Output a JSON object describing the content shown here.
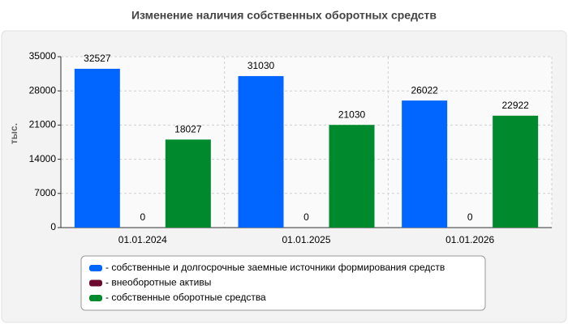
{
  "chart_data": {
    "type": "bar",
    "title": "Изменение наличия собственных оборотных средств",
    "y_label": "тыс.",
    "categories": [
      "01.01.2024",
      "01.01.2025",
      "01.01.2026"
    ],
    "series": [
      {
        "name": "- собственные и долгосрочные заемные источники формирования средств",
        "color": "#0066ff",
        "values": [
          32527,
          31030,
          26022
        ]
      },
      {
        "name": "- внеоборотные активы",
        "color": "#6b0a2e",
        "values": [
          0,
          0,
          0
        ]
      },
      {
        "name": "- собственные оборотные средства",
        "color": "#008a2e",
        "values": [
          18027,
          21030,
          22922
        ]
      }
    ],
    "ylim": [
      0,
      35000
    ],
    "yticks": [
      0,
      7000,
      14000,
      21000,
      28000,
      35000
    ],
    "grid": true
  }
}
